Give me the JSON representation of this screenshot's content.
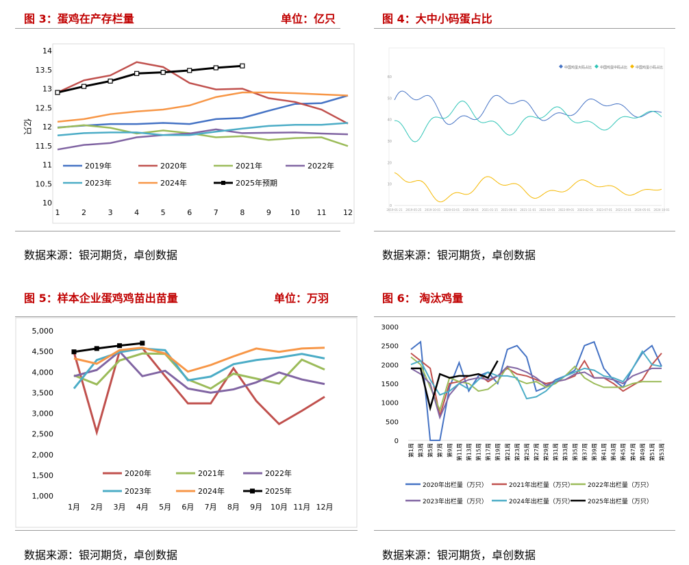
{
  "panels": {
    "p3": {
      "title": "图 3：蛋鸡在产存栏量",
      "unit": "单位：亿只",
      "source": "数据来源：银河期货，卓创数据"
    },
    "p4": {
      "title": "图 4：大中小码蛋占比",
      "source": "数据来源：银河期货，卓创数据"
    },
    "p5": {
      "title": "图 5：样本企业蛋鸡鸡苗出苗量",
      "unit": "单位：万羽",
      "source": "数据来源：银河期货，卓创数据"
    },
    "p6": {
      "title": "图 6：  淘汰鸡量",
      "source": "数据来源：银河期货，卓创数据"
    }
  },
  "chart_data": [
    {
      "id": "c3",
      "type": "line",
      "ylabel": "亿只",
      "x": [
        1,
        2,
        3,
        4,
        5,
        6,
        7,
        8,
        9,
        10,
        11,
        12
      ],
      "ylim": [
        10,
        14
      ],
      "yticks": [
        10,
        10.5,
        11,
        11.5,
        12,
        12.5,
        13,
        13.5,
        14
      ],
      "series": [
        {
          "name": "2019年",
          "color": "#4472c4",
          "values": [
            11.98,
            12.03,
            12.07,
            12.07,
            12.1,
            12.07,
            12.2,
            12.23,
            12.42,
            12.6,
            12.62,
            12.82
          ]
        },
        {
          "name": "2020年",
          "color": "#c0504d",
          "values": [
            12.9,
            13.22,
            13.35,
            13.7,
            13.57,
            13.15,
            12.98,
            13.0,
            12.75,
            12.65,
            12.45,
            12.08
          ]
        },
        {
          "name": "2021年",
          "color": "#9bbb59",
          "values": [
            11.97,
            12.04,
            11.97,
            11.82,
            11.9,
            11.83,
            11.72,
            11.75,
            11.65,
            11.7,
            11.72,
            11.49
          ]
        },
        {
          "name": "2022年",
          "color": "#8064a2",
          "values": [
            11.4,
            11.52,
            11.57,
            11.72,
            11.78,
            11.82,
            11.93,
            11.83,
            11.84,
            11.85,
            11.82,
            11.8
          ]
        },
        {
          "name": "2023年",
          "color": "#4bacc6",
          "values": [
            11.77,
            11.83,
            11.85,
            11.85,
            11.78,
            11.78,
            11.87,
            11.95,
            12.02,
            12.05,
            12.05,
            12.1
          ]
        },
        {
          "name": "2024年",
          "color": "#f79646",
          "values": [
            12.13,
            12.2,
            12.33,
            12.4,
            12.45,
            12.56,
            12.78,
            12.9,
            12.9,
            12.88,
            12.85,
            12.82
          ]
        },
        {
          "name": "2025年预期",
          "color": "#000000",
          "marker": "square",
          "values": [
            12.9,
            13.06,
            13.2,
            13.4,
            13.43,
            13.48,
            13.55,
            13.6,
            null,
            null,
            null,
            null
          ]
        }
      ]
    },
    {
      "id": "c4",
      "type": "line",
      "legend": [
        "中国鸡蛋大码占比",
        "中国鸡蛋中码占比",
        "中国鸡蛋小码占比"
      ],
      "ylim": [
        0,
        60
      ],
      "yticks": [
        0,
        10,
        20,
        30,
        40,
        50,
        60
      ],
      "xticks": [
        "2019-01-21",
        "2019-05-25",
        "2019-10-01",
        "2020-03-01",
        "2020-08-01",
        "2021-01-15",
        "2021-06-01",
        "2021-11-01",
        "2022-04-01",
        "2022-09-01",
        "2023-02-01",
        "2023-07-01",
        "2023-12-01",
        "2024-05-01",
        "2024-10-01"
      ],
      "series": [
        {
          "name": "中国鸡蛋大码占比",
          "color": "#4472c4"
        },
        {
          "name": "中国鸡蛋中码占比",
          "color": "#2ec4b6"
        },
        {
          "name": "中国鸡蛋小码占比",
          "color": "#f5b800"
        }
      ]
    },
    {
      "id": "c5",
      "type": "line",
      "categories": [
        "1月",
        "2月",
        "3月",
        "4月",
        "5月",
        "6月",
        "7月",
        "8月",
        "9月",
        "10月",
        "11月",
        "12月"
      ],
      "ylim": [
        1000,
        5000
      ],
      "yticks": [
        "1,000",
        "1,500",
        "2,000",
        "2,500",
        "3,000",
        "3,500",
        "4,000",
        "4,500",
        "5,000"
      ],
      "series": [
        {
          "name": "2020年",
          "color": "#c0504d",
          "values": [
            4480,
            2540,
            4500,
            4580,
            3900,
            3240,
            3240,
            4090,
            3300,
            2740,
            3060,
            3400
          ]
        },
        {
          "name": "2021年",
          "color": "#9bbb59",
          "values": [
            3920,
            3700,
            4280,
            4450,
            4440,
            3820,
            3600,
            3960,
            3840,
            3720,
            4300,
            4060
          ]
        },
        {
          "name": "2022年",
          "color": "#8064a2",
          "values": [
            3900,
            4050,
            4500,
            3900,
            4030,
            3600,
            3500,
            3580,
            3750,
            3990,
            3820,
            3710
          ]
        },
        {
          "name": "2023年",
          "color": "#4bacc6",
          "values": [
            3600,
            4290,
            4480,
            4570,
            4530,
            3800,
            3890,
            4190,
            4290,
            4350,
            4440,
            4330
          ]
        },
        {
          "name": "2024年",
          "color": "#f79646",
          "values": [
            4330,
            4200,
            4530,
            4590,
            4450,
            4010,
            4170,
            4380,
            4570,
            4490,
            4570,
            4590
          ]
        },
        {
          "name": "2025年",
          "color": "#000000",
          "marker": "square",
          "values": [
            4490,
            4570,
            4640,
            4700,
            null,
            null,
            null,
            null,
            null,
            null,
            null,
            null
          ]
        }
      ]
    },
    {
      "id": "c6",
      "type": "line",
      "ylim": [
        0,
        3000
      ],
      "yticks": [
        0,
        500,
        1000,
        1500,
        2000,
        2500,
        3000
      ],
      "xticks": [
        "第1周",
        "第3周",
        "第5周",
        "第7周",
        "第9周",
        "第11周",
        "第13周",
        "第15周",
        "第17周",
        "第19周",
        "第21周",
        "第23周",
        "第25周",
        "第27周",
        "第29周",
        "第31周",
        "第33周",
        "第35周",
        "第37周",
        "第39周",
        "第41周",
        "第43周",
        "第45周",
        "第47周",
        "第49周",
        "第51周",
        "第53周"
      ],
      "series": [
        {
          "name": "2020年出栏量（万只）",
          "color": "#4472c4"
        },
        {
          "name": "2021年出栏量（万只）",
          "color": "#c0504d"
        },
        {
          "name": "2022年出栏量（万只）",
          "color": "#9bbb59"
        },
        {
          "name": "2023年出栏量（万只）",
          "color": "#8064a2"
        },
        {
          "name": "2024年出栏量（万只）",
          "color": "#4bacc6"
        },
        {
          "name": "2025年出栏量（万只）",
          "color": "#000000"
        }
      ]
    }
  ]
}
